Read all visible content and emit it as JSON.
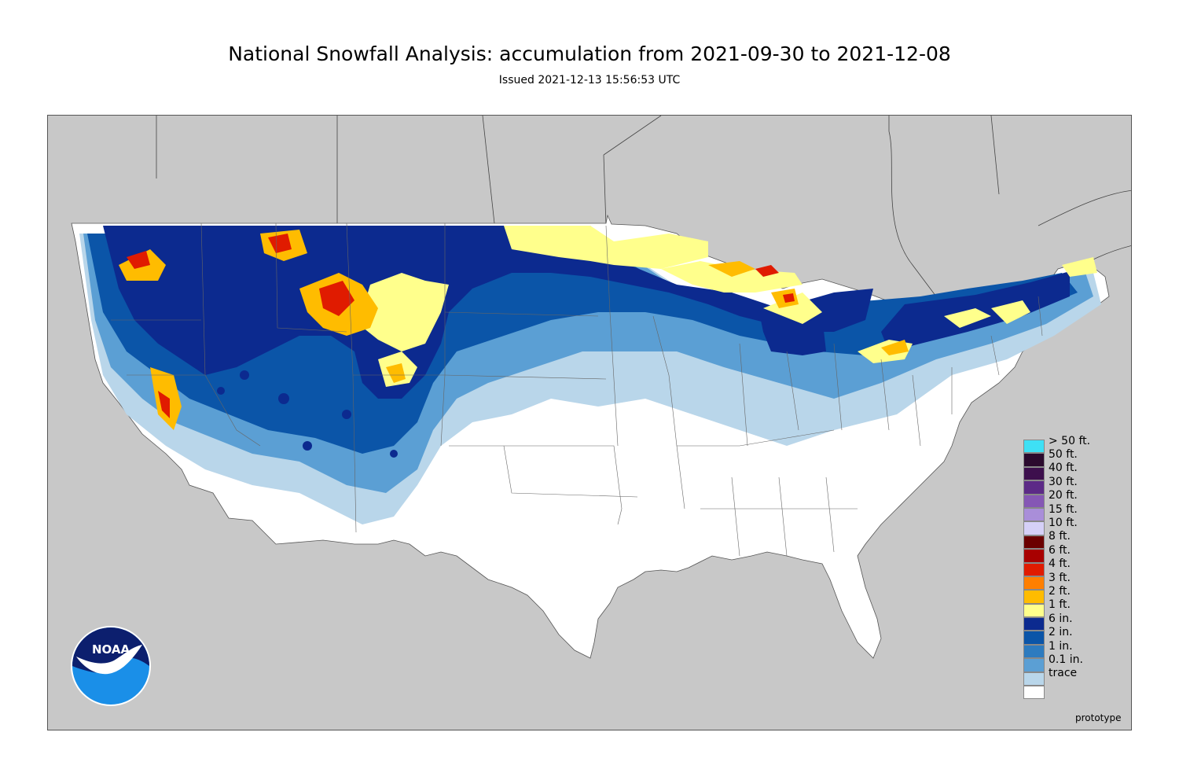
{
  "title": "National Snowfall Analysis: accumulation from 2021-09-30 to 2021-12-08",
  "subtitle": "Issued 2021-12-13 15:56:53 UTC",
  "footer_note": "prototype",
  "logo_text": "NOAA",
  "colors": {
    "background": "#c8c8c8",
    "land_us": "#ffffff",
    "water": "#c8c8c8",
    "border": "#555555"
  },
  "legend": {
    "items": [
      {
        "label": "> 50 ft.",
        "color": "#3ee0f5"
      },
      {
        "label": "50 ft.",
        "color": "#2b0a2e"
      },
      {
        "label": "40 ft.",
        "color": "#3d0f4d"
      },
      {
        "label": "30 ft.",
        "color": "#5c2a87"
      },
      {
        "label": "20 ft.",
        "color": "#8557b5"
      },
      {
        "label": "15 ft.",
        "color": "#a98ed9"
      },
      {
        "label": "10 ft.",
        "color": "#d5d0f7"
      },
      {
        "label": "8 ft.",
        "color": "#6b0000"
      },
      {
        "label": "6 ft.",
        "color": "#a80000"
      },
      {
        "label": "4 ft.",
        "color": "#e01b00"
      },
      {
        "label": "3 ft.",
        "color": "#ff7f00"
      },
      {
        "label": "2 ft.",
        "color": "#ffbc00"
      },
      {
        "label": "1 ft.",
        "color": "#ffff8c"
      },
      {
        "label": "6 in.",
        "color": "#0c2a8f"
      },
      {
        "label": "2 in.",
        "color": "#0b55a8"
      },
      {
        "label": "1 in.",
        "color": "#2d7bbf"
      },
      {
        "label": "0.1 in.",
        "color": "#5b9fd4"
      },
      {
        "label": "trace",
        "color": "#b9d6ea"
      },
      {
        "label": "",
        "color": "#ffffff"
      }
    ]
  }
}
